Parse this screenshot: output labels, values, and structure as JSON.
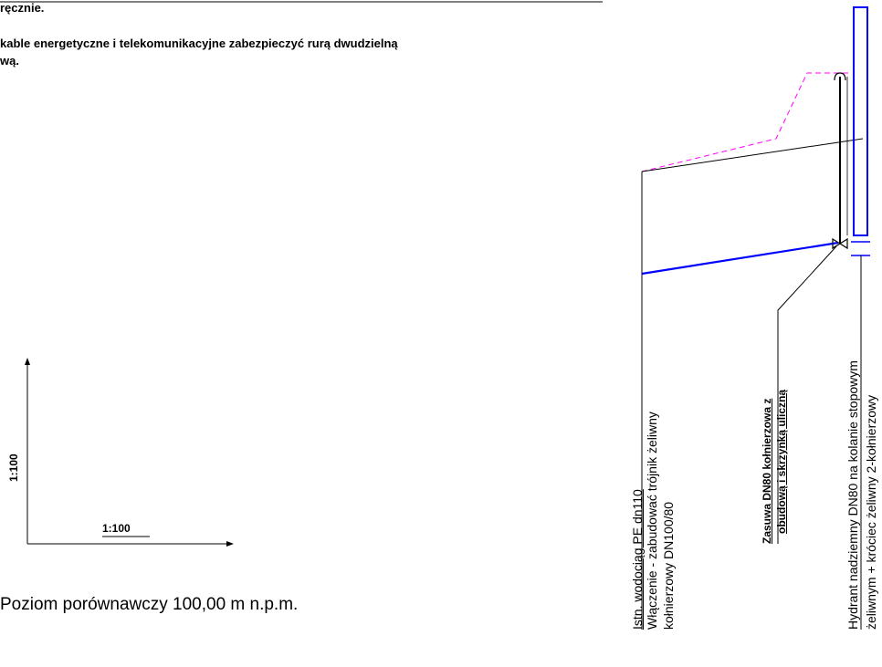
{
  "notes": {
    "line1": "ręcznie.",
    "line2": " kable energetyczne i telekomunikacyjne zabezpieczyć rurą dwudzielną",
    "line3": "wą."
  },
  "scale": {
    "vertical": "1:100",
    "horizontal": "1:100"
  },
  "reference_level": "Poziom porównawczy 100,00 m n.p.m.",
  "labels": {
    "existing_pipe": "Istn. wodociąg PE dn110",
    "connection_line1": "Włączenie - zabudować trójnik żeliwny",
    "connection_line2": "kołnierzowy DN100/80",
    "valve_line1": "Zasuwa DN80 kołnierzowa z",
    "valve_line2": "obudową i skrzynką uliczną",
    "hydrant_line1": "Hydrant nadziemny DN80 na kolanie stopowym",
    "hydrant_line2": "żeliwnym + króciec żeliwny 2-kołnierzowy"
  },
  "colors": {
    "pipe": "#0000ff",
    "terrain_design": "#ff00ff",
    "line": "#000000",
    "hydrant": "#0000ff"
  }
}
